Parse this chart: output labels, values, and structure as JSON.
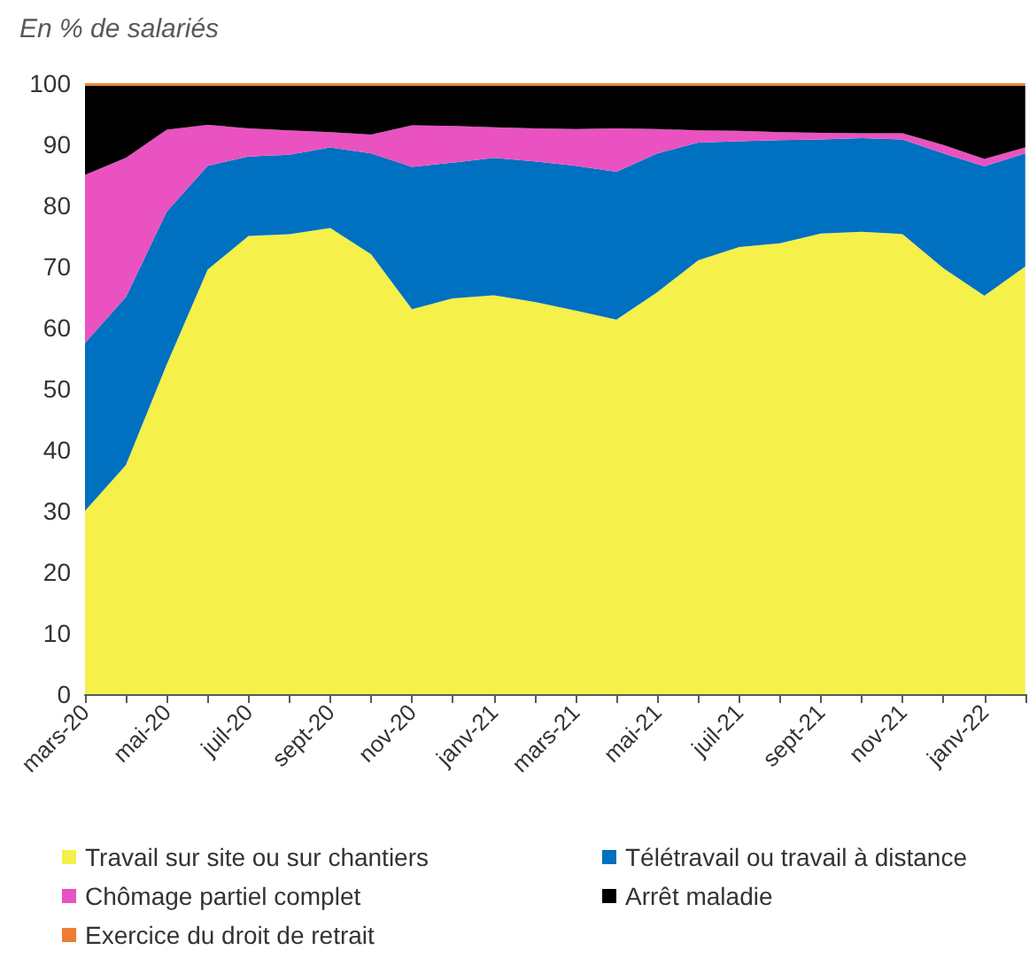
{
  "chart_data": {
    "type": "area",
    "title": "En % de salariés",
    "stacked": true,
    "categories": [
      "mars-20",
      null,
      "mai-20",
      null,
      "juil-20",
      null,
      "sept-20",
      null,
      "nov-20",
      null,
      "janv-21",
      null,
      "mars-21",
      null,
      "mai-21",
      null,
      "juil-21",
      null,
      "sept-21",
      null,
      "nov-21",
      null,
      "janv-22",
      null
    ],
    "series": [
      {
        "name": "Travail sur site ou sur chantiers",
        "color": "#f5f04a",
        "values": [
          30,
          37.5,
          54,
          69.5,
          75,
          75.3,
          76.3,
          72,
          63,
          64.8,
          65.3,
          64.2,
          62.8,
          61.3,
          65.8,
          71,
          73.2,
          73.8,
          75.4,
          75.7,
          75.3,
          69.7,
          65.2,
          70
        ]
      },
      {
        "name": "Télétravail ou travail à distance",
        "color": "#0070c0",
        "values": [
          27.5,
          27.5,
          25,
          17,
          13,
          13,
          13.2,
          16.5,
          23.3,
          22.2,
          22.5,
          23,
          23.7,
          24.2,
          22.7,
          19.3,
          17.3,
          16.9,
          15.4,
          15.3,
          15.5,
          18.8,
          21.2,
          18.5
        ]
      },
      {
        "name": "Chômage partiel complet",
        "color": "#e952c0",
        "values": [
          27.5,
          22.8,
          13.4,
          6.7,
          4.6,
          4,
          2.5,
          3.1,
          6.8,
          6,
          5,
          5.4,
          6,
          7.1,
          4,
          2,
          1.7,
          1.3,
          1.1,
          0.8,
          1,
          1.4,
          1.2,
          1
        ]
      },
      {
        "name": "Arrêt maladie",
        "color": "#000000",
        "values": [
          14.6,
          11.8,
          7.2,
          6.4,
          7,
          7.3,
          7.6,
          8,
          6.5,
          6.6,
          6.8,
          7,
          7.1,
          7,
          7.1,
          7.3,
          7.4,
          7.6,
          7.7,
          7.8,
          7.8,
          9.7,
          12,
          10.1
        ]
      },
      {
        "name": "Exercice du droit de retrait",
        "color": "#ed7d31",
        "values": [
          0.4,
          0.4,
          0.4,
          0.4,
          0.4,
          0.4,
          0.4,
          0.4,
          0.4,
          0.4,
          0.4,
          0.4,
          0.4,
          0.4,
          0.4,
          0.4,
          0.4,
          0.4,
          0.4,
          0.4,
          0.4,
          0.4,
          0.4,
          0.4
        ]
      }
    ],
    "ylim": [
      0,
      100
    ],
    "yticks": [
      0,
      10,
      20,
      30,
      40,
      50,
      60,
      70,
      80,
      90,
      100
    ],
    "grid": false,
    "legend": "bottom"
  }
}
